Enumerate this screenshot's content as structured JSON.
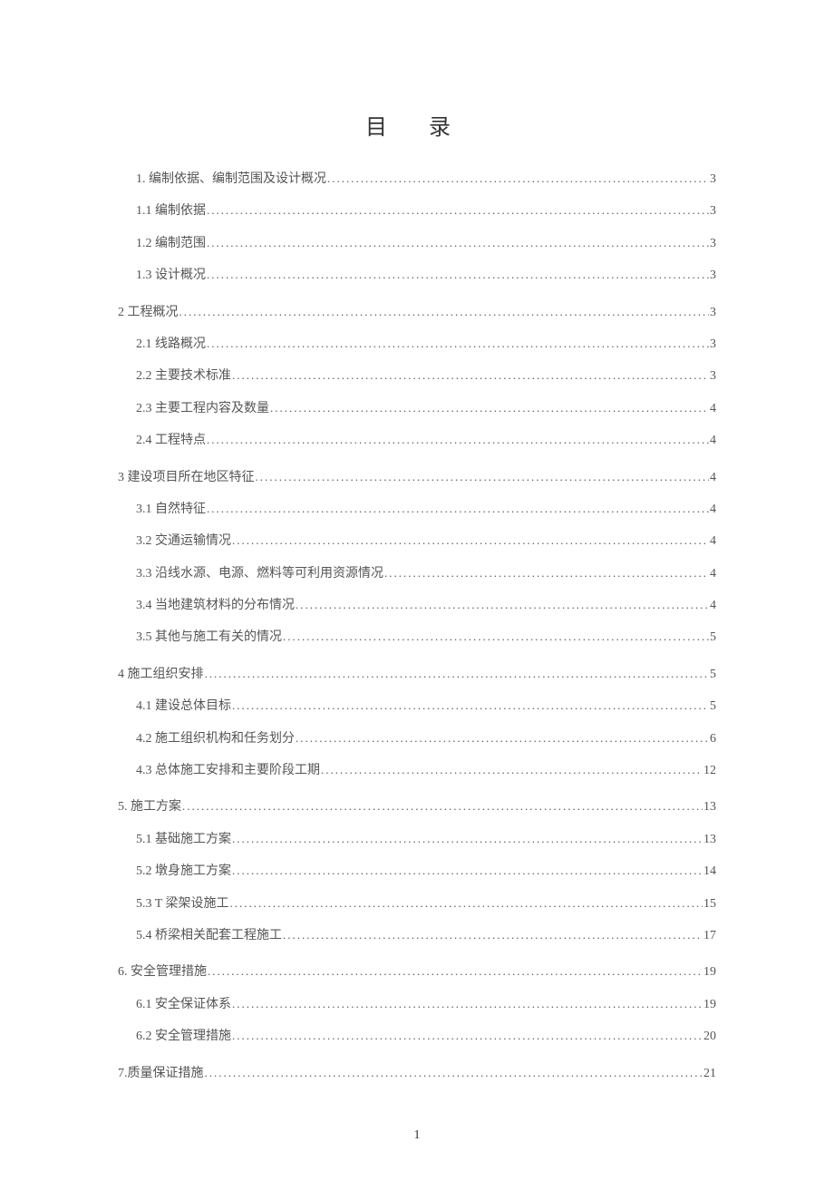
{
  "title": "目 录",
  "page_number": "1",
  "entries": [
    {
      "level": 1,
      "first": true,
      "label": "1. 编制依据、编制范围及设计概况",
      "page": "3"
    },
    {
      "level": 2,
      "label": "1.1 编制依据",
      "page": "3"
    },
    {
      "level": 2,
      "label": "1.2 编制范围",
      "page": "3"
    },
    {
      "level": 2,
      "label": "1.3 设计概况",
      "page": "3"
    },
    {
      "level": 1,
      "label": "2 工程概况",
      "page": "3"
    },
    {
      "level": 2,
      "label": "2.1 线路概况",
      "page": "3"
    },
    {
      "level": 2,
      "label": "2.2 主要技术标准",
      "page": "3"
    },
    {
      "level": 2,
      "label": "2.3 主要工程内容及数量",
      "page": "4"
    },
    {
      "level": 2,
      "label": "2.4 工程特点",
      "page": "4"
    },
    {
      "level": 1,
      "label": "3 建设项目所在地区特征",
      "page": "4"
    },
    {
      "level": 2,
      "label": "3.1 自然特征",
      "page": "4"
    },
    {
      "level": 2,
      "label": "3.2 交通运输情况",
      "page": "4"
    },
    {
      "level": 2,
      "label": "3.3 沿线水源、电源、燃料等可利用资源情况",
      "page": "4"
    },
    {
      "level": 2,
      "label": "3.4 当地建筑材料的分布情况",
      "page": "4"
    },
    {
      "level": 2,
      "label": "3.5 其他与施工有关的情况",
      "page": "5"
    },
    {
      "level": 1,
      "label": "4 施工组织安排",
      "page": "5"
    },
    {
      "level": 2,
      "label": "4.1 建设总体目标",
      "page": "5"
    },
    {
      "level": 2,
      "label": "4.2 施工组织机构和任务划分",
      "page": "6"
    },
    {
      "level": 2,
      "label": "4.3 总体施工安排和主要阶段工期",
      "page": "12"
    },
    {
      "level": 1,
      "label": "5. 施工方案",
      "page": "13"
    },
    {
      "level": 2,
      "label": "5.1 基础施工方案",
      "page": "13"
    },
    {
      "level": 2,
      "label": "5.2 墩身施工方案",
      "page": "14"
    },
    {
      "level": 2,
      "label": "5.3 T 梁架设施工",
      "page": "15"
    },
    {
      "level": 2,
      "label": "5.4 桥梁相关配套工程施工",
      "page": "17"
    },
    {
      "level": 1,
      "label": "6. 安全管理措施",
      "page": "19"
    },
    {
      "level": 2,
      "label": "6.1 安全保证体系",
      "page": "19"
    },
    {
      "level": 2,
      "label": "6.2 安全管理措施",
      "page": "20"
    },
    {
      "level": 1,
      "label": "7.质量保证措施",
      "page": "21"
    }
  ]
}
